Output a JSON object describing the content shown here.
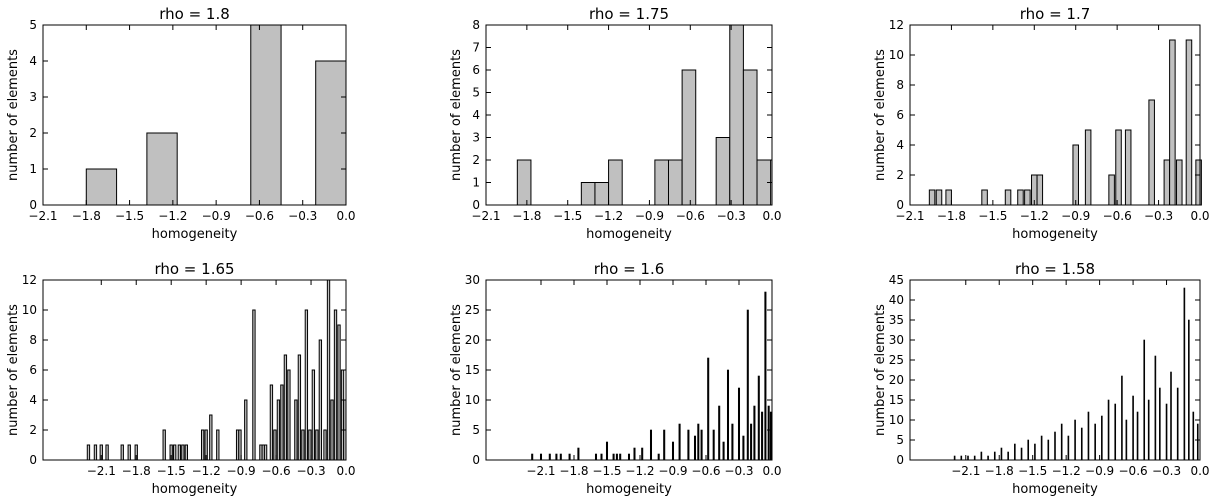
{
  "figure": {
    "bar_fill": "#c0c0c0",
    "bar_edge": "#000000",
    "background": "#ffffff"
  },
  "chart_data": [
    {
      "type": "bar",
      "title": "rho = 1.8",
      "xlabel": "homogeneity",
      "ylabel": "number of elements",
      "xlim": [
        -2.1,
        0.0
      ],
      "ylim": [
        0,
        5
      ],
      "xticks": [
        -2.1,
        -1.8,
        -1.5,
        -1.2,
        -0.9,
        -0.6,
        -0.3,
        0.0
      ],
      "xtick_labels": [
        "−2.1",
        "−1.8",
        "−1.5",
        "−1.2",
        "−0.9",
        "−0.6",
        "−0.3",
        "0.0"
      ],
      "yticks": [
        0,
        1,
        2,
        3,
        4,
        5
      ],
      "ytick_labels": [
        "0",
        "1",
        "2",
        "3",
        "4",
        "5"
      ],
      "bins": [
        {
          "x0": -1.8,
          "x1": -1.59,
          "count": 1
        },
        {
          "x0": -1.38,
          "x1": -1.17,
          "count": 2
        },
        {
          "x0": -0.66,
          "x1": -0.45,
          "count": 5
        },
        {
          "x0": -0.21,
          "x1": 0.0,
          "count": 4
        }
      ]
    },
    {
      "type": "bar",
      "title": "rho = 1.75",
      "xlabel": "homogeneity",
      "ylabel": "number of elements",
      "xlim": [
        -2.1,
        0.0
      ],
      "ylim": [
        0,
        8
      ],
      "xticks": [
        -2.1,
        -1.8,
        -1.5,
        -1.2,
        -0.9,
        -0.6,
        -0.3,
        0.0
      ],
      "xtick_labels": [
        "−2.1",
        "−1.8",
        "−1.5",
        "−1.2",
        "−0.9",
        "−0.6",
        "−0.3",
        "0.0"
      ],
      "yticks": [
        0,
        1,
        2,
        3,
        4,
        5,
        6,
        7,
        8
      ],
      "ytick_labels": [
        "0",
        "1",
        "2",
        "3",
        "4",
        "5",
        "6",
        "7",
        "8"
      ],
      "bins": [
        {
          "x0": -1.87,
          "x1": -1.77,
          "count": 2
        },
        {
          "x0": -1.4,
          "x1": -1.3,
          "count": 1
        },
        {
          "x0": -1.3,
          "x1": -1.2,
          "count": 1
        },
        {
          "x0": -1.2,
          "x1": -1.1,
          "count": 2
        },
        {
          "x0": -0.86,
          "x1": -0.76,
          "count": 2
        },
        {
          "x0": -0.76,
          "x1": -0.66,
          "count": 2
        },
        {
          "x0": -0.66,
          "x1": -0.56,
          "count": 6
        },
        {
          "x0": -0.41,
          "x1": -0.31,
          "count": 3
        },
        {
          "x0": -0.31,
          "x1": -0.21,
          "count": 8
        },
        {
          "x0": -0.21,
          "x1": -0.11,
          "count": 6
        },
        {
          "x0": -0.11,
          "x1": -0.01,
          "count": 2
        }
      ]
    },
    {
      "type": "bar",
      "title": "rho = 1.7",
      "xlabel": "homogeneity",
      "ylabel": "number of elements",
      "xlim": [
        -2.1,
        0.0
      ],
      "ylim": [
        0,
        12
      ],
      "xticks": [
        -2.1,
        -1.8,
        -1.5,
        -1.2,
        -0.9,
        -0.6,
        -0.3,
        0.0
      ],
      "xtick_labels": [
        "−2.1",
        "−1.8",
        "−1.5",
        "−1.2",
        "−0.9",
        "−0.6",
        "−0.3",
        "0.0"
      ],
      "yticks": [
        0,
        2,
        4,
        6,
        8,
        10,
        12
      ],
      "ytick_labels": [
        "0",
        "2",
        "4",
        "6",
        "8",
        "10",
        "12"
      ],
      "bins": [
        {
          "x0": -1.96,
          "x1": -1.92,
          "count": 1
        },
        {
          "x0": -1.91,
          "x1": -1.87,
          "count": 1
        },
        {
          "x0": -1.84,
          "x1": -1.8,
          "count": 1
        },
        {
          "x0": -1.58,
          "x1": -1.54,
          "count": 1
        },
        {
          "x0": -1.41,
          "x1": -1.37,
          "count": 1
        },
        {
          "x0": -1.32,
          "x1": -1.28,
          "count": 1
        },
        {
          "x0": -1.27,
          "x1": -1.23,
          "count": 1
        },
        {
          "x0": -1.22,
          "x1": -1.18,
          "count": 2
        },
        {
          "x0": -1.18,
          "x1": -1.14,
          "count": 2
        },
        {
          "x0": -0.92,
          "x1": -0.88,
          "count": 4
        },
        {
          "x0": -0.83,
          "x1": -0.79,
          "count": 5
        },
        {
          "x0": -0.66,
          "x1": -0.62,
          "count": 2
        },
        {
          "x0": -0.61,
          "x1": -0.57,
          "count": 5
        },
        {
          "x0": -0.54,
          "x1": -0.5,
          "count": 5
        },
        {
          "x0": -0.37,
          "x1": -0.33,
          "count": 7
        },
        {
          "x0": -0.26,
          "x1": -0.22,
          "count": 3
        },
        {
          "x0": -0.22,
          "x1": -0.18,
          "count": 11
        },
        {
          "x0": -0.17,
          "x1": -0.13,
          "count": 3
        },
        {
          "x0": -0.1,
          "x1": -0.06,
          "count": 11
        },
        {
          "x0": -0.03,
          "x1": 0.01,
          "count": 3
        }
      ]
    },
    {
      "type": "bar",
      "title": "rho = 1.65",
      "xlabel": "homogeneity",
      "ylabel": "number of elements",
      "xlim": [
        -2.6,
        0.0
      ],
      "ylim": [
        0,
        12
      ],
      "xticks": [
        -2.1,
        -1.8,
        -1.5,
        -1.2,
        -0.9,
        -0.6,
        -0.3,
        0.0
      ],
      "xtick_labels": [
        "−2.1",
        "−1.8",
        "−1.5",
        "−1.2",
        "−0.9",
        "−0.6",
        "−0.3",
        "0.0"
      ],
      "yticks": [
        0,
        2,
        4,
        6,
        8,
        10,
        12
      ],
      "ytick_labels": [
        "0",
        "2",
        "4",
        "6",
        "8",
        "10",
        "12"
      ],
      "bars": {
        "width": 0.02,
        "items": [
          [
            -2.21,
            1
          ],
          [
            -2.15,
            1
          ],
          [
            -2.1,
            1
          ],
          [
            -2.05,
            1
          ],
          [
            -1.92,
            1
          ],
          [
            -1.86,
            1
          ],
          [
            -1.8,
            1
          ],
          [
            -1.56,
            2
          ],
          [
            -1.5,
            1
          ],
          [
            -1.47,
            1
          ],
          [
            -1.43,
            1
          ],
          [
            -1.4,
            1
          ],
          [
            -1.37,
            1
          ],
          [
            -1.23,
            2
          ],
          [
            -1.2,
            2
          ],
          [
            -1.16,
            3
          ],
          [
            -1.1,
            2
          ],
          [
            -0.93,
            2
          ],
          [
            -0.91,
            2
          ],
          [
            -0.86,
            4
          ],
          [
            -0.79,
            10
          ],
          [
            -0.73,
            1
          ],
          [
            -0.71,
            1
          ],
          [
            -0.69,
            1
          ],
          [
            -0.64,
            5
          ],
          [
            -0.61,
            2
          ],
          [
            -0.58,
            4
          ],
          [
            -0.55,
            5
          ],
          [
            -0.52,
            7
          ],
          [
            -0.49,
            6
          ],
          [
            -0.43,
            4
          ],
          [
            -0.4,
            7
          ],
          [
            -0.37,
            2
          ],
          [
            -0.34,
            10
          ],
          [
            -0.31,
            2
          ],
          [
            -0.28,
            6
          ],
          [
            -0.25,
            2
          ],
          [
            -0.22,
            8
          ],
          [
            -0.18,
            2
          ],
          [
            -0.15,
            12
          ],
          [
            -0.12,
            4
          ],
          [
            -0.09,
            10
          ],
          [
            -0.06,
            9
          ],
          [
            -0.03,
            6
          ],
          [
            -0.01,
            4
          ]
        ]
      }
    },
    {
      "type": "bar",
      "title": "rho = 1.6",
      "xlabel": "homogeneity",
      "ylabel": "number of elements",
      "xlim": [
        -2.6,
        0.0
      ],
      "ylim": [
        0,
        30
      ],
      "xticks": [
        -2.1,
        -1.8,
        -1.5,
        -1.2,
        -0.9,
        -0.6,
        -0.3,
        0.0
      ],
      "xtick_labels": [
        "−2.1",
        "−1.8",
        "−1.5",
        "−1.2",
        "−0.9",
        "−0.6",
        "−0.3",
        "0.0"
      ],
      "yticks": [
        0,
        5,
        10,
        15,
        20,
        25,
        30
      ],
      "ytick_labels": [
        "0",
        "5",
        "10",
        "15",
        "20",
        "25",
        "30"
      ],
      "bars": {
        "width": 0.013,
        "items": [
          [
            -2.18,
            1
          ],
          [
            -2.1,
            1
          ],
          [
            -2.02,
            1
          ],
          [
            -1.96,
            1
          ],
          [
            -1.92,
            1
          ],
          [
            -1.84,
            1
          ],
          [
            -1.76,
            2
          ],
          [
            -1.6,
            1
          ],
          [
            -1.55,
            1
          ],
          [
            -1.5,
            3
          ],
          [
            -1.44,
            1
          ],
          [
            -1.41,
            1
          ],
          [
            -1.38,
            1
          ],
          [
            -1.3,
            1
          ],
          [
            -1.25,
            2
          ],
          [
            -1.18,
            2
          ],
          [
            -1.1,
            5
          ],
          [
            -1.03,
            1
          ],
          [
            -0.98,
            5
          ],
          [
            -0.9,
            3
          ],
          [
            -0.84,
            6
          ],
          [
            -0.76,
            5
          ],
          [
            -0.7,
            4
          ],
          [
            -0.67,
            6
          ],
          [
            -0.64,
            5
          ],
          [
            -0.58,
            17
          ],
          [
            -0.53,
            5
          ],
          [
            -0.48,
            9
          ],
          [
            -0.44,
            3
          ],
          [
            -0.4,
            15
          ],
          [
            -0.36,
            6
          ],
          [
            -0.3,
            12
          ],
          [
            -0.26,
            4
          ],
          [
            -0.22,
            25
          ],
          [
            -0.19,
            6
          ],
          [
            -0.16,
            9
          ],
          [
            -0.12,
            14
          ],
          [
            -0.09,
            8
          ],
          [
            -0.06,
            28
          ],
          [
            -0.03,
            9
          ],
          [
            -0.01,
            8
          ]
        ]
      }
    },
    {
      "type": "bar",
      "title": "rho = 1.58",
      "xlabel": "homogeneity",
      "ylabel": "number of elements",
      "xlim": [
        -2.6,
        0.0
      ],
      "ylim": [
        0,
        45
      ],
      "xticks": [
        -2.1,
        -1.8,
        -1.5,
        -1.2,
        -0.9,
        -0.6,
        -0.3,
        0.0
      ],
      "xtick_labels": [
        "−2.1",
        "−1.8",
        "−1.5",
        "−1.2",
        "−0.9",
        "−0.6",
        "−0.3",
        "0.0"
      ],
      "yticks": [
        0,
        5,
        10,
        15,
        20,
        25,
        30,
        35,
        40,
        45
      ],
      "ytick_labels": [
        "0",
        "5",
        "10",
        "15",
        "20",
        "25",
        "30",
        "35",
        "40",
        "45"
      ],
      "bars": {
        "width": 0.009,
        "items": [
          [
            -2.2,
            1
          ],
          [
            -2.14,
            1
          ],
          [
            -2.08,
            1
          ],
          [
            -2.02,
            1
          ],
          [
            -1.96,
            2
          ],
          [
            -1.9,
            1
          ],
          [
            -1.84,
            2
          ],
          [
            -1.78,
            3
          ],
          [
            -1.72,
            2
          ],
          [
            -1.66,
            4
          ],
          [
            -1.6,
            3
          ],
          [
            -1.54,
            5
          ],
          [
            -1.48,
            4
          ],
          [
            -1.42,
            6
          ],
          [
            -1.36,
            5
          ],
          [
            -1.3,
            7
          ],
          [
            -1.24,
            9
          ],
          [
            -1.18,
            6
          ],
          [
            -1.12,
            10
          ],
          [
            -1.06,
            8
          ],
          [
            -1.0,
            12
          ],
          [
            -0.94,
            9
          ],
          [
            -0.88,
            11
          ],
          [
            -0.82,
            15
          ],
          [
            -0.76,
            14
          ],
          [
            -0.7,
            21
          ],
          [
            -0.66,
            10
          ],
          [
            -0.6,
            16
          ],
          [
            -0.56,
            12
          ],
          [
            -0.5,
            30
          ],
          [
            -0.46,
            15
          ],
          [
            -0.4,
            26
          ],
          [
            -0.36,
            18
          ],
          [
            -0.3,
            14
          ],
          [
            -0.26,
            22
          ],
          [
            -0.2,
            18
          ],
          [
            -0.14,
            43
          ],
          [
            -0.1,
            35
          ],
          [
            -0.06,
            12
          ],
          [
            -0.02,
            9
          ]
        ]
      }
    }
  ]
}
